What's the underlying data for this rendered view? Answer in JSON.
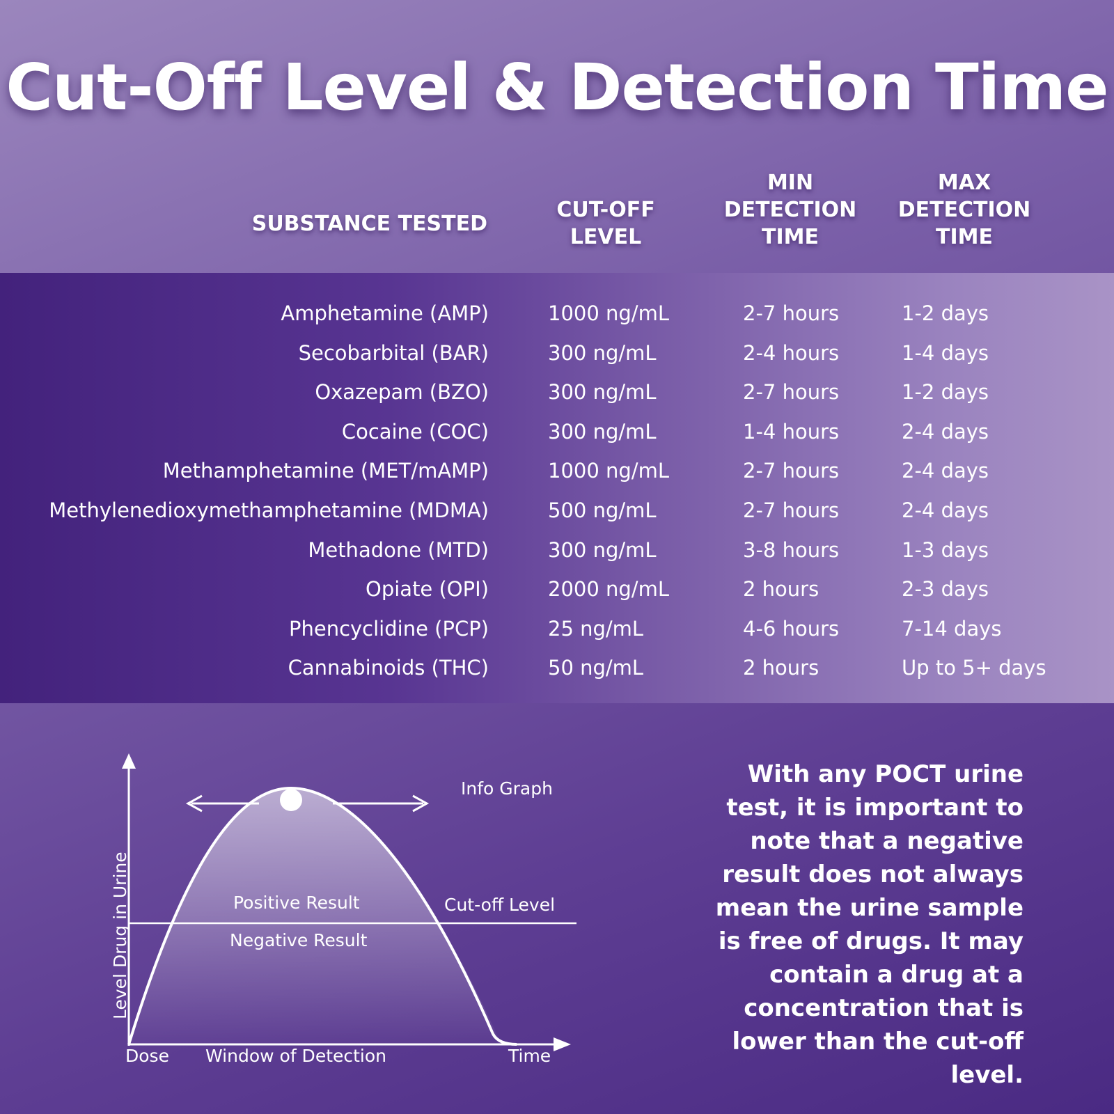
{
  "title": "Cut-Off Level & Detection Time",
  "table": {
    "headers": {
      "substance": "SUBSTANCE TESTED",
      "cutoff": "CUT-OFF LEVEL",
      "min": "MIN DETECTION TIME",
      "max": "MAX DETECTION TIME"
    },
    "rows": [
      {
        "substance": "Amphetamine (AMP)",
        "cutoff": "1000 ng/mL",
        "min": "2-7 hours",
        "max": "1-2 days"
      },
      {
        "substance": "Secobarbital (BAR)",
        "cutoff": "300 ng/mL",
        "min": "2-4 hours",
        "max": "1-4 days"
      },
      {
        "substance": "Oxazepam (BZO)",
        "cutoff": "300 ng/mL",
        "min": "2-7 hours",
        "max": "1-2 days"
      },
      {
        "substance": "Cocaine (COC)",
        "cutoff": "300 ng/mL",
        "min": "1-4 hours",
        "max": "2-4 days"
      },
      {
        "substance": "Methamphetamine (MET/mAMP)",
        "cutoff": "1000 ng/mL",
        "min": "2-7 hours",
        "max": "2-4 days"
      },
      {
        "substance": "Methylenedioxymethamphetamine (MDMA)",
        "cutoff": "500 ng/mL",
        "min": "2-7 hours",
        "max": "2-4 days"
      },
      {
        "substance": "Methadone (MTD)",
        "cutoff": "300 ng/mL",
        "min": "3-8 hours",
        "max": "1-3 days"
      },
      {
        "substance": "Opiate (OPI)",
        "cutoff": "2000 ng/mL",
        "min": "2 hours",
        "max": "2-3 days"
      },
      {
        "substance": "Phencyclidine (PCP)",
        "cutoff": "25 ng/mL",
        "min": "4-6 hours",
        "max": "7-14 days"
      },
      {
        "substance": "Cannabinoids (THC)",
        "cutoff": "50 ng/mL",
        "min": "2 hours",
        "max": "Up to 5+ days"
      }
    ]
  },
  "infograph": {
    "title": "Info Graph",
    "y_axis": "Level Drug in Urine",
    "x_start": "Dose",
    "x_window": "Window of Detection",
    "x_end": "Time",
    "cutoff_line": "Cut-off Level",
    "above_label": "Positive Result",
    "below_label": "Negative Result"
  },
  "note": "With any POCT urine test, it is important to note that a negative result does not always mean the urine sample is free of drugs. It may contain a drug at a concentration that is lower than the cut-off level.",
  "colors": {
    "background_top": "#9b86bd",
    "background_bottom": "#4a2a83",
    "band_left": "#43227c",
    "band_right": "#a993c6",
    "text": "#ffffff"
  }
}
